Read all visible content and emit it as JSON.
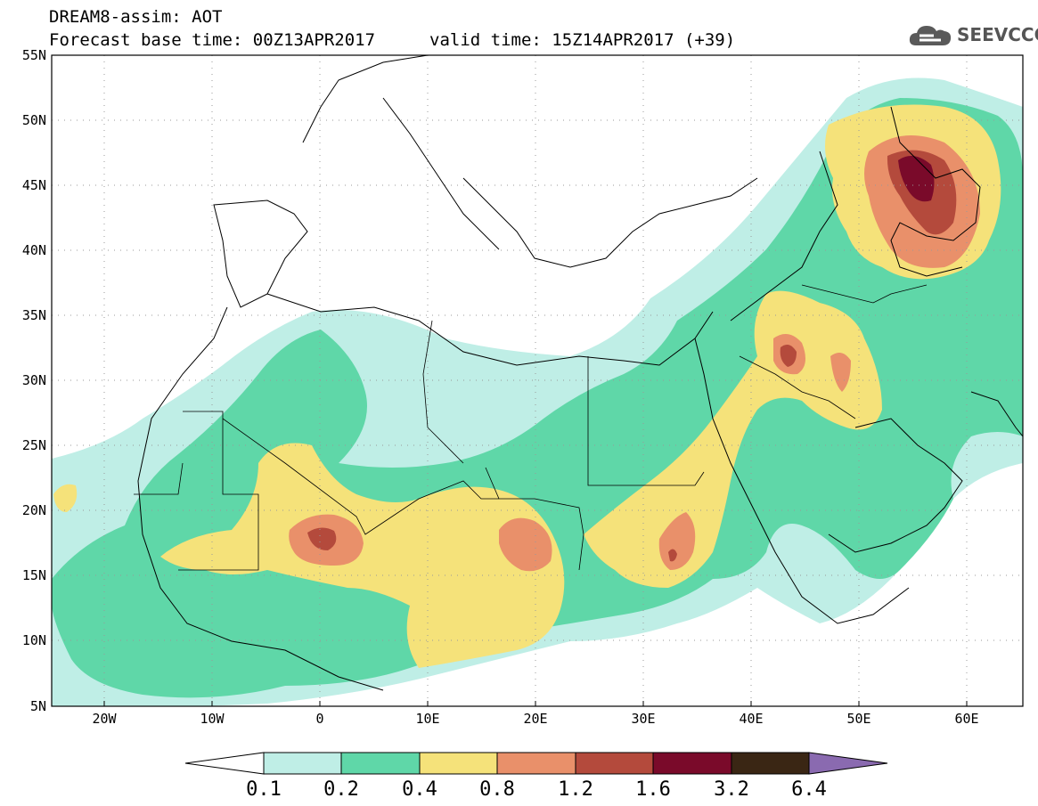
{
  "header": {
    "title": "DREAM8-assim: AOT",
    "base_time": "Forecast base time: 00Z13APR2017",
    "valid_time": "valid time: 15Z14APR2017 (+39)"
  },
  "logo": {
    "text": "SEEVCCC",
    "icon": "cloud-icon"
  },
  "axes": {
    "lat_labels": [
      "55N",
      "50N",
      "45N",
      "40N",
      "35N",
      "30N",
      "25N",
      "20N",
      "15N",
      "10N",
      "5N"
    ],
    "lon_labels": [
      "20W",
      "10W",
      "0",
      "10E",
      "20E",
      "30E",
      "40E",
      "50E",
      "60E"
    ]
  },
  "colorbar": {
    "levels": [
      "0.1",
      "0.2",
      "0.4",
      "0.8",
      "1.2",
      "1.6",
      "3.2",
      "6.4"
    ],
    "colors": [
      "#ffffff",
      "#bfeee6",
      "#5fd7a8",
      "#f5e27a",
      "#e9906a",
      "#b44a3c",
      "#7a0a2a",
      "#3a2614",
      "#8a6ab0"
    ]
  }
}
